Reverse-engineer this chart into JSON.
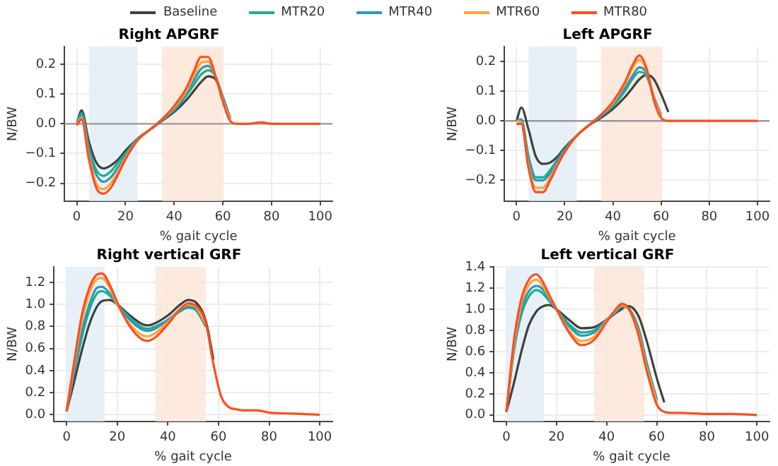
{
  "chart_data": [
    {
      "type": "line",
      "title": "Right APGRF",
      "xlabel": "% gait cycle",
      "ylabel": "N/BW",
      "legend": "top",
      "grid": true,
      "xlim": [
        -5,
        105
      ],
      "xticks": [
        0,
        20,
        40,
        60,
        80,
        100
      ],
      "ylim": [
        -0.26,
        0.26
      ],
      "yticks": [
        {
          "value": -0.2,
          "label": "−0.2"
        },
        {
          "value": -0.1,
          "label": "−0.1"
        },
        {
          "value": 0,
          "label": "0.0"
        },
        0.1,
        0.2
      ],
      "x": [
        0,
        2,
        5,
        8,
        11,
        14,
        17,
        20,
        25,
        30,
        35,
        40,
        45,
        48,
        51,
        54,
        57,
        60,
        63,
        66,
        70,
        76,
        80,
        90,
        100
      ],
      "series": [
        {
          "name": "Baseline",
          "color": "#404040",
          "values": [
            0,
            0.045,
            -0.06,
            -0.13,
            -0.15,
            -0.14,
            -0.12,
            -0.09,
            -0.05,
            -0.02,
            0.01,
            0.04,
            0.08,
            0.11,
            0.14,
            0.16,
            0.15,
            0.09,
            0.02,
            null,
            null,
            null,
            null,
            null,
            null
          ]
        },
        {
          "name": "MTR20",
          "color": "#1aaf8b",
          "values": [
            0,
            0.035,
            -0.08,
            -0.155,
            -0.175,
            -0.16,
            -0.13,
            -0.1,
            -0.05,
            -0.02,
            0.012,
            0.045,
            0.095,
            0.13,
            0.165,
            0.18,
            0.16,
            0.09,
            0.02,
            null,
            null,
            null,
            null,
            null,
            null
          ]
        },
        {
          "name": "MTR40",
          "color": "#2a98c0",
          "values": [
            0,
            0.03,
            -0.09,
            -0.17,
            -0.195,
            -0.18,
            -0.145,
            -0.11,
            -0.055,
            -0.02,
            0.012,
            0.05,
            0.1,
            0.145,
            0.185,
            0.195,
            0.16,
            0.085,
            0.015,
            null,
            null,
            null,
            null,
            null,
            null
          ]
        },
        {
          "name": "MTR60",
          "color": "#ffa533",
          "values": [
            0,
            0.02,
            -0.11,
            -0.2,
            -0.22,
            -0.2,
            -0.16,
            -0.115,
            -0.055,
            -0.02,
            0.015,
            0.055,
            0.11,
            0.16,
            0.205,
            0.21,
            0.16,
            0.08,
            0.015,
            null,
            null,
            null,
            null,
            null,
            null
          ]
        },
        {
          "name": "MTR80",
          "color": "#ff4d1f",
          "values": [
            -0.005,
            0.015,
            -0.12,
            -0.215,
            -0.235,
            -0.215,
            -0.17,
            -0.12,
            -0.055,
            -0.02,
            0.015,
            0.06,
            0.12,
            0.175,
            0.225,
            0.225,
            0.16,
            0.075,
            0.01,
            0,
            0,
            0.005,
            0,
            0,
            0
          ]
        }
      ],
      "bands": [
        {
          "axis": "x",
          "from": 5,
          "to": 25,
          "color": "#e4eef5"
        },
        {
          "axis": "x",
          "from": 35,
          "to": 60,
          "color": "#fde8db"
        }
      ],
      "ref_lines": [
        {
          "axis": "y",
          "value": 0,
          "color": "#999999"
        }
      ]
    },
    {
      "type": "line",
      "title": "Left APGRF",
      "xlabel": "% gait cycle",
      "ylabel": "N/BW",
      "grid": true,
      "xlim": [
        -5,
        105
      ],
      "xticks": [
        0,
        20,
        40,
        60,
        80,
        100
      ],
      "ylim": [
        -0.27,
        0.25
      ],
      "yticks": [
        {
          "value": -0.2,
          "label": "−0.2"
        },
        {
          "value": -0.1,
          "label": "−0.1"
        },
        {
          "value": 0,
          "label": "0.0"
        },
        0.1,
        0.2
      ],
      "x": [
        0,
        2,
        5,
        8,
        11,
        14,
        17,
        20,
        25,
        30,
        35,
        40,
        45,
        48,
        51,
        54,
        57,
        60,
        63,
        66,
        70,
        76,
        80,
        90,
        100
      ],
      "series": [
        {
          "color": "#404040",
          "values": [
            0,
            0.045,
            -0.03,
            -0.12,
            -0.145,
            -0.14,
            -0.12,
            -0.09,
            -0.05,
            -0.015,
            0.01,
            0.04,
            0.08,
            0.11,
            0.14,
            0.155,
            0.14,
            0.09,
            0.03,
            null,
            null,
            null,
            null,
            null,
            null
          ]
        },
        {
          "color": "#1aaf8b",
          "values": [
            0,
            0.005,
            -0.12,
            -0.19,
            -0.19,
            -0.165,
            -0.13,
            -0.095,
            -0.05,
            -0.015,
            0.015,
            0.05,
            0.1,
            0.14,
            0.165,
            0.15,
            0.08,
            0.02,
            null,
            null,
            null,
            null,
            null,
            null,
            null
          ]
        },
        {
          "color": "#2a98c0",
          "values": [
            0,
            0.005,
            -0.13,
            -0.2,
            -0.2,
            -0.175,
            -0.135,
            -0.1,
            -0.05,
            -0.015,
            0.015,
            0.055,
            0.11,
            0.15,
            0.18,
            0.16,
            0.08,
            0.02,
            null,
            null,
            null,
            null,
            null,
            null,
            null
          ]
        },
        {
          "color": "#ffa533",
          "values": [
            0,
            -0.005,
            -0.15,
            -0.225,
            -0.225,
            -0.19,
            -0.145,
            -0.105,
            -0.05,
            -0.015,
            0.02,
            0.06,
            0.125,
            0.175,
            0.205,
            0.17,
            0.075,
            0.015,
            null,
            null,
            null,
            null,
            null,
            null,
            null
          ]
        },
        {
          "color": "#ff4d1f",
          "values": [
            -0.01,
            -0.01,
            -0.16,
            -0.24,
            -0.24,
            -0.2,
            -0.15,
            -0.105,
            -0.05,
            -0.015,
            0.02,
            0.065,
            0.13,
            0.185,
            0.22,
            0.175,
            0.07,
            0.01,
            0,
            0,
            0,
            0,
            0,
            0,
            0
          ]
        }
      ],
      "bands": [
        {
          "axis": "x",
          "from": 5,
          "to": 25,
          "color": "#e4eef5"
        },
        {
          "axis": "x",
          "from": 35,
          "to": 60,
          "color": "#fde8db"
        }
      ],
      "ref_lines": [
        {
          "axis": "y",
          "value": 0,
          "color": "#999999"
        }
      ]
    },
    {
      "type": "line",
      "title": "Right vertical GRF",
      "xlabel": "% gait cycle",
      "ylabel": "N/BW",
      "grid": true,
      "xlim": [
        -5,
        105
      ],
      "xticks": [
        0,
        20,
        40,
        60,
        80,
        100
      ],
      "ylim": [
        -0.06,
        1.34
      ],
      "yticks": [
        {
          "value": 0,
          "label": "0.0"
        },
        0.2,
        0.4,
        0.6,
        0.8,
        {
          "value": 1,
          "label": "1.0"
        },
        1.2
      ],
      "x": [
        0,
        3,
        6,
        9,
        12,
        14,
        17,
        20,
        25,
        30,
        32,
        35,
        40,
        45,
        48,
        51,
        55,
        58,
        61,
        64,
        67,
        70,
        75,
        80,
        90,
        100
      ],
      "series": [
        {
          "color": "#404040",
          "values": [
            0.03,
            0.3,
            0.58,
            0.82,
            0.98,
            1.03,
            1.04,
            1.0,
            0.9,
            0.82,
            0.81,
            0.83,
            0.9,
            1.0,
            1.04,
            1.02,
            0.85,
            0.5,
            null,
            null,
            null,
            null,
            null,
            null,
            null,
            null
          ]
        },
        {
          "color": "#1aaf8b",
          "values": [
            0.03,
            0.38,
            0.7,
            0.95,
            1.1,
            1.12,
            1.08,
            1.0,
            0.88,
            0.79,
            0.78,
            0.8,
            0.86,
            0.94,
            0.97,
            0.95,
            0.8,
            null,
            null,
            null,
            null,
            null,
            null,
            null,
            null,
            null
          ]
        },
        {
          "color": "#2a98c0",
          "values": [
            0.03,
            0.4,
            0.75,
            1.0,
            1.15,
            1.16,
            1.1,
            1.0,
            0.86,
            0.77,
            0.76,
            0.78,
            0.86,
            0.95,
            0.98,
            0.96,
            0.8,
            null,
            null,
            null,
            null,
            null,
            null,
            null,
            null,
            null
          ]
        },
        {
          "color": "#ffa533",
          "values": [
            0.03,
            0.45,
            0.85,
            1.1,
            1.23,
            1.24,
            1.15,
            1.0,
            0.82,
            0.72,
            0.71,
            0.74,
            0.84,
            0.96,
            1.0,
            0.98,
            0.82,
            null,
            null,
            null,
            null,
            null,
            null,
            null,
            null,
            null
          ]
        },
        {
          "color": "#ff4d1f",
          "values": [
            0.03,
            0.48,
            0.9,
            1.15,
            1.27,
            1.28,
            1.18,
            1.02,
            0.8,
            0.68,
            0.67,
            0.7,
            0.82,
            0.96,
            1.01,
            0.99,
            0.83,
            0.46,
            0.17,
            0.07,
            0.05,
            0.04,
            0.04,
            0.02,
            0.01,
            0
          ]
        }
      ],
      "bands": [
        {
          "axis": "x",
          "from": 0,
          "to": 15,
          "color": "#e4eef5"
        },
        {
          "axis": "x",
          "from": 35,
          "to": 55,
          "color": "#fde8db"
        }
      ]
    },
    {
      "type": "line",
      "title": "Left vertical GRF",
      "xlabel": "% gait cycle",
      "ylabel": "N/BW",
      "grid": true,
      "xlim": [
        -5,
        105
      ],
      "xticks": [
        0,
        20,
        40,
        60,
        80,
        100
      ],
      "ylim": [
        -0.06,
        1.4
      ],
      "yticks": [
        {
          "value": 0,
          "label": "0.0"
        },
        0.2,
        0.4,
        0.6,
        0.8,
        {
          "value": 1,
          "label": "1.0"
        },
        1.2,
        1.4
      ],
      "x": [
        0,
        3,
        6,
        9,
        12,
        14,
        17,
        20,
        25,
        30,
        35,
        40,
        44,
        46,
        48,
        50,
        53,
        56,
        60,
        63,
        66,
        70,
        80,
        90,
        100
      ],
      "series": [
        {
          "color": "#404040",
          "values": [
            0.03,
            0.3,
            0.6,
            0.85,
            0.98,
            1.02,
            1.04,
            1.0,
            0.9,
            0.82,
            0.83,
            0.9,
            0.97,
            1.0,
            1.03,
            1.02,
            0.92,
            0.7,
            0.35,
            0.12,
            null,
            null,
            null,
            null,
            null
          ]
        },
        {
          "color": "#1aaf8b",
          "values": [
            0.03,
            0.6,
            0.95,
            1.12,
            1.18,
            1.16,
            1.08,
            1.0,
            0.86,
            0.78,
            0.8,
            0.9,
            0.98,
            1.02,
            1.02,
            0.97,
            0.8,
            0.5,
            0.15,
            null,
            null,
            null,
            null,
            null,
            null
          ]
        },
        {
          "color": "#2a98c0",
          "values": [
            0.03,
            0.62,
            1.0,
            1.17,
            1.22,
            1.2,
            1.1,
            1.0,
            0.84,
            0.75,
            0.78,
            0.9,
            0.99,
            1.03,
            1.02,
            0.96,
            0.78,
            0.48,
            0.14,
            null,
            null,
            null,
            null,
            null,
            null
          ]
        },
        {
          "color": "#ffa533",
          "values": [
            0.03,
            0.65,
            1.05,
            1.23,
            1.28,
            1.24,
            1.12,
            1.0,
            0.8,
            0.7,
            0.74,
            0.89,
            1.0,
            1.04,
            1.02,
            0.95,
            0.75,
            0.45,
            0.12,
            null,
            null,
            null,
            null,
            null,
            null
          ]
        },
        {
          "color": "#ff4d1f",
          "values": [
            0.03,
            0.7,
            1.1,
            1.28,
            1.33,
            1.28,
            1.14,
            1.0,
            0.78,
            0.66,
            0.71,
            0.88,
            1.01,
            1.05,
            1.03,
            0.95,
            0.73,
            0.42,
            0.1,
            0.03,
            0.02,
            0.02,
            0.01,
            0.01,
            0
          ]
        }
      ],
      "bands": [
        {
          "axis": "x",
          "from": 0,
          "to": 15,
          "color": "#e4eef5"
        },
        {
          "axis": "x",
          "from": 35,
          "to": 55,
          "color": "#fde8db"
        }
      ]
    }
  ]
}
